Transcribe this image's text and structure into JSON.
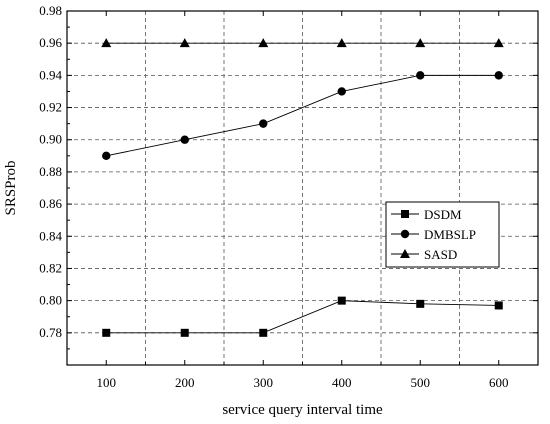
{
  "chart_data": {
    "type": "line",
    "title": "",
    "xlabel": "service query interval time",
    "ylabel": "SRSProb",
    "x": [
      100,
      200,
      300,
      400,
      500,
      600
    ],
    "x_ticks": [
      "100",
      "200",
      "300",
      "400",
      "500",
      "600"
    ],
    "xlim": [
      50,
      650
    ],
    "ylim": [
      0.76,
      0.98
    ],
    "y_ticks": [
      "0.78",
      "0.80",
      "0.82",
      "0.84",
      "0.86",
      "0.88",
      "0.90",
      "0.92",
      "0.94",
      "0.96",
      "0.98"
    ],
    "grid": true,
    "legend_position": "center-right",
    "series": [
      {
        "name": "DSDM",
        "marker": "square",
        "values": [
          0.78,
          0.78,
          0.78,
          0.8,
          0.798,
          0.797
        ]
      },
      {
        "name": "DMBSLP",
        "marker": "circle",
        "values": [
          0.89,
          0.9,
          0.91,
          0.93,
          0.94,
          0.94
        ]
      },
      {
        "name": "SASD",
        "marker": "triangle",
        "values": [
          0.96,
          0.96,
          0.96,
          0.96,
          0.96,
          0.96
        ]
      }
    ]
  }
}
